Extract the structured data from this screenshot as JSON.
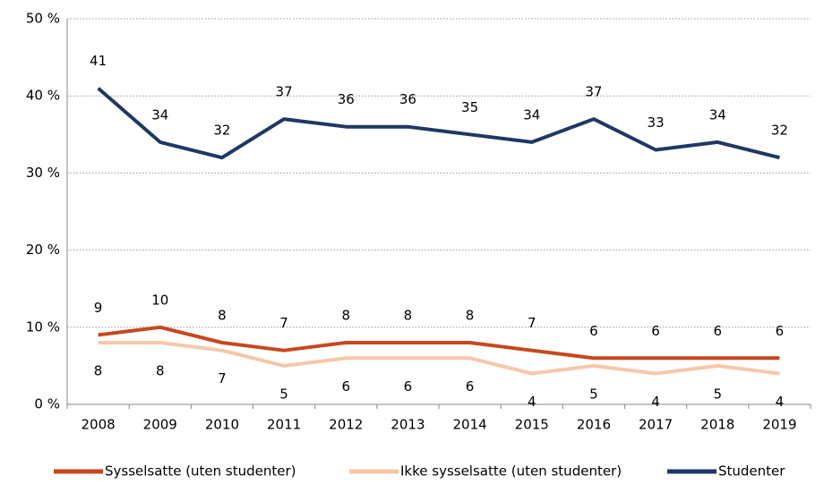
{
  "chart_data": {
    "type": "line",
    "categories": [
      "2008",
      "2009",
      "2010",
      "2011",
      "2012",
      "2013",
      "2014",
      "2015",
      "2016",
      "2017",
      "2018",
      "2019"
    ],
    "series": [
      {
        "name": "Sysselsatte (uten studenter)",
        "color": "#c8471d",
        "values": [
          9,
          10,
          8,
          7,
          8,
          8,
          8,
          7,
          6,
          6,
          6,
          6
        ],
        "label_position": "above"
      },
      {
        "name": "Ikke sysselsatte (uten studenter)",
        "color": "#f6c7a9",
        "values": [
          8,
          8,
          7,
          5,
          6,
          6,
          6,
          4,
          5,
          4,
          5,
          4
        ],
        "label_position": "below"
      },
      {
        "name": "Studenter",
        "color": "#1f3864",
        "values": [
          41,
          34,
          32,
          37,
          36,
          36,
          35,
          34,
          37,
          33,
          34,
          32
        ],
        "label_position": "above"
      }
    ],
    "ylim": [
      0,
      50
    ],
    "yticks": [
      {
        "value": 0,
        "label": "0 %"
      },
      {
        "value": 10,
        "label": "10 %"
      },
      {
        "value": 20,
        "label": "20 %"
      },
      {
        "value": 30,
        "label": "30 %"
      },
      {
        "value": 40,
        "label": "40 %"
      },
      {
        "value": 50,
        "label": "50 %"
      }
    ],
    "grid": true,
    "legend": "bottom"
  }
}
